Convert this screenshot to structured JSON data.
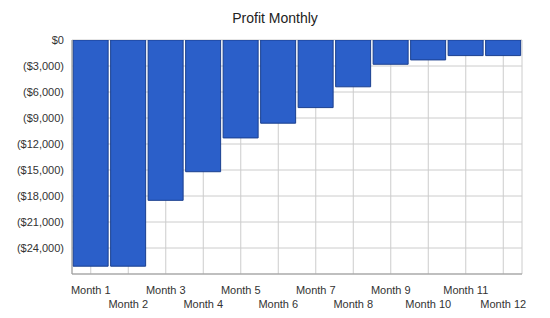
{
  "chart_data": {
    "type": "bar",
    "title": "Profit Monthly",
    "categories": [
      "Month 1",
      "Month 2",
      "Month 3",
      "Month 4",
      "Month 5",
      "Month 6",
      "Month 7",
      "Month 8",
      "Month 9",
      "Month 10",
      "Month 11",
      "Month 12"
    ],
    "values": [
      -26100,
      -26100,
      -18500,
      -15200,
      -11300,
      -9600,
      -7800,
      -5400,
      -2800,
      -2300,
      -1800,
      -1800
    ],
    "color": "#2b5fc9",
    "ylim": [
      -27000,
      0
    ],
    "yticks": [
      {
        "value": 0,
        "label": "$0"
      },
      {
        "value": -3000,
        "label": "($3,000)"
      },
      {
        "value": -6000,
        "label": "($6,000)"
      },
      {
        "value": -9000,
        "label": "($9,000)"
      },
      {
        "value": -12000,
        "label": "($12,000)"
      },
      {
        "value": -15000,
        "label": "($15,000)"
      },
      {
        "value": -18000,
        "label": "($18,000)"
      },
      {
        "value": -21000,
        "label": "($21,000)"
      },
      {
        "value": -24000,
        "label": "($24,000)"
      }
    ],
    "grid": true
  }
}
